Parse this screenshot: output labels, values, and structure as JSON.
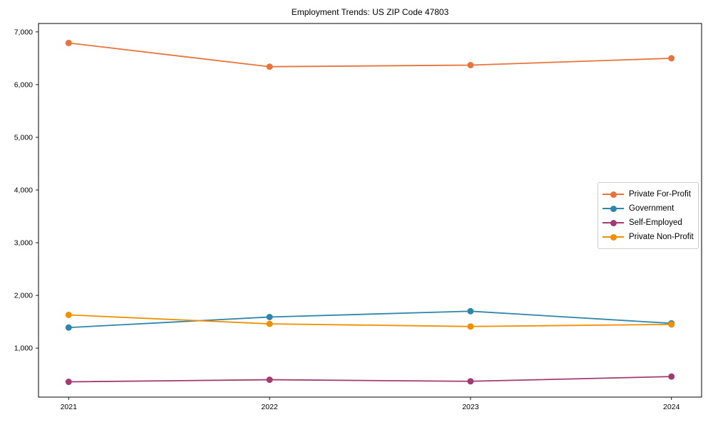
{
  "figure": {
    "background": "#ffffff",
    "axis_color": "#000000",
    "legend_border_color": "#cccccc"
  },
  "chart_data": {
    "type": "line",
    "title": "Employment Trends: US ZIP Code 47803",
    "xlabel": "",
    "ylabel": "",
    "x": [
      2021,
      2022,
      2023,
      2024
    ],
    "xtick_labels": [
      "2021",
      "2022",
      "2023",
      "2024"
    ],
    "yticks": [
      1000,
      2000,
      3000,
      4000,
      5000,
      6000,
      7000
    ],
    "ytick_labels": [
      "1,000",
      "2,000",
      "3,000",
      "4,000",
      "5,000",
      "6,000",
      "7,000"
    ],
    "xlim": [
      2020.85,
      2024.15
    ],
    "ylim": [
      70,
      7160
    ],
    "grid": false,
    "legend_position": "center-right",
    "marker": "circle",
    "series": [
      {
        "name": "Private For-Profit",
        "color": "#E8743B",
        "values": [
          6790,
          6340,
          6370,
          6500
        ]
      },
      {
        "name": "Government",
        "color": "#2E86AB",
        "values": [
          1390,
          1590,
          1700,
          1470
        ]
      },
      {
        "name": "Self-Employed",
        "color": "#A23B72",
        "values": [
          360,
          400,
          370,
          460
        ]
      },
      {
        "name": "Private Non-Profit",
        "color": "#F18F01",
        "values": [
          1630,
          1460,
          1410,
          1450
        ]
      }
    ]
  }
}
